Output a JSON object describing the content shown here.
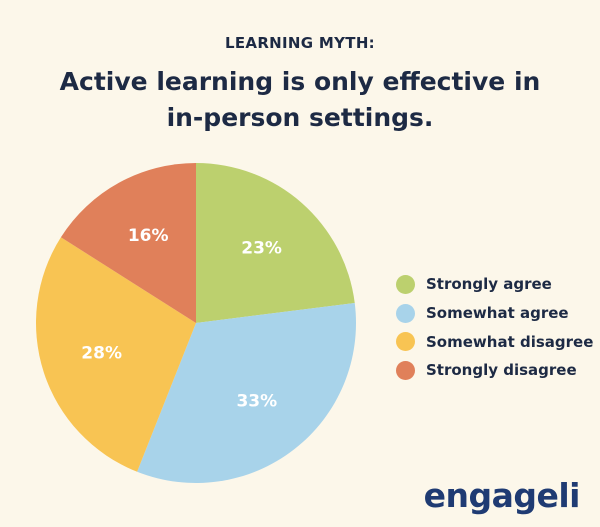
{
  "header": {
    "kicker": "LEARNING MYTH:",
    "title_line1": "Active learning is only effective in",
    "title_line2": "in-person settings."
  },
  "chart_data": {
    "type": "pie",
    "title": "Active learning is only effective in in-person settings.",
    "categories": [
      "Strongly agree",
      "Somewhat agree",
      "Somewhat disagree",
      "Strongly disagree"
    ],
    "values": [
      23,
      33,
      28,
      16
    ],
    "labels": [
      "23%",
      "33%",
      "28%",
      "16%"
    ],
    "colors": [
      "#bcd06e",
      "#a8d3ea",
      "#f8c453",
      "#e0805a"
    ],
    "legend": "right"
  },
  "brand": {
    "name": "engageli"
  }
}
